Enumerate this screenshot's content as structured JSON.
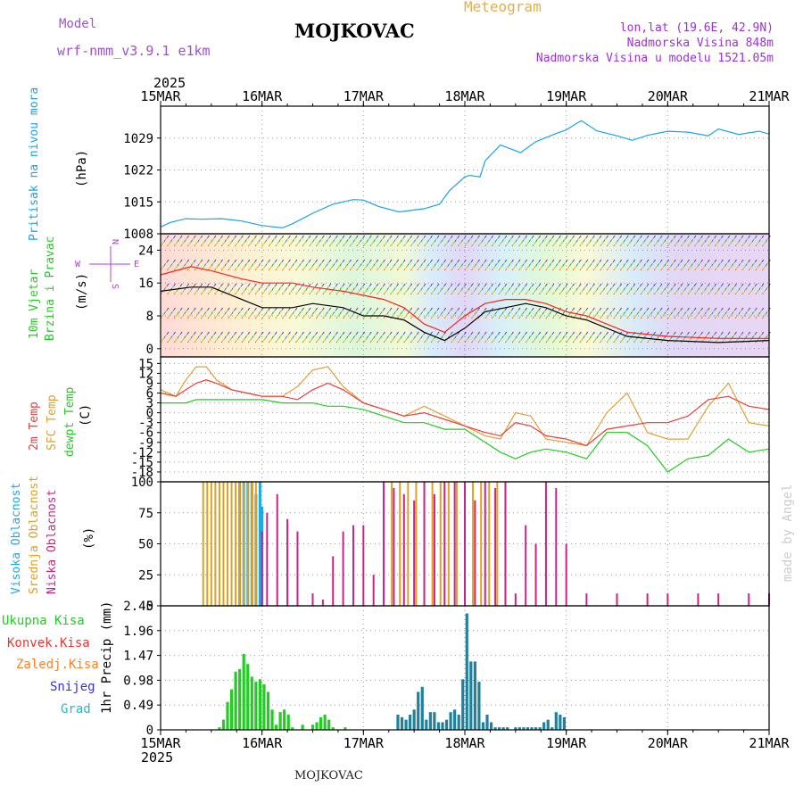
{
  "header": {
    "model_label": "Model",
    "model_name": "wrf-nmm_v3.9.1 e1km",
    "station": "MOJKOVAC",
    "meteogram": "Meteogram",
    "lonlat": "lon,lat (19.6E, 42.9N)",
    "elevation": "Nadmorska Visina 848m",
    "model_elevation": "Nadmorska Visina u modelu 1521.05m",
    "year_top": "2025",
    "year_bottom": "2025",
    "footer_station": "MOJKOVAC",
    "credit": "made by Angel"
  },
  "colors": {
    "pressure": "#1aa3e8",
    "wind_speed": "#000000",
    "gust": "#ff2020",
    "t2m": "#ee3b3b",
    "sfc": "#e0a030",
    "dew": "#22cc22",
    "cloud_high": "#22a8e0",
    "cloud_mid": "#e0a020",
    "cloud_low": "#cc2288",
    "rain_total": "#22cc22",
    "rain_conv": "#ee3333",
    "rain_frz": "#ff7f27",
    "snow": "#3333dd",
    "hail": "#22bbbb",
    "grid": "#999999",
    "wind_legend": "#b040d0"
  },
  "axes": {
    "time_labels": [
      "15MAR",
      "16MAR",
      "17MAR",
      "18MAR",
      "19MAR",
      "20MAR",
      "21MAR"
    ]
  },
  "panels": {
    "pressure": {
      "label_a": "Pritisak na nivou mora",
      "unit": "(hPa)"
    },
    "wind": {
      "label_a": "10m Vjetar",
      "label_b": "Brzina i Pravac",
      "unit": "(m/s)",
      "legend_n": "N",
      "legend_s": "S",
      "legend_w": "W",
      "legend_e": "E"
    },
    "temp": {
      "label_a": "2m Temp",
      "label_b": "SFC Temp",
      "label_c": "dewpt Temp",
      "unit": "(C)"
    },
    "cloud": {
      "label_a": "Visoka Oblacnost",
      "label_b": "Srednja Oblacnost",
      "label_c": "Niska Oblacnost",
      "unit": "(%)"
    },
    "precip": {
      "labels": [
        "Ukupna Kisa",
        "Konvek.Kisa",
        "Zaledj.Kisa",
        "Snijeg",
        "Grad"
      ],
      "unit": "1hr Precip (mm)"
    }
  },
  "chart_data": [
    {
      "type": "line",
      "name": "pressure",
      "x_unit": "days since 15MAR 00",
      "ylim": [
        1008,
        1036
      ],
      "yticks": [
        1008,
        1015,
        1022,
        1029
      ],
      "series": [
        {
          "x": [
            0,
            0.1,
            0.25,
            0.4,
            0.6,
            0.8,
            1.0,
            1.2,
            1.3,
            1.5,
            1.7,
            1.9,
            2.0,
            2.15,
            2.35,
            2.6,
            2.75,
            2.85,
            3.0,
            3.05,
            3.15,
            3.2,
            3.35,
            3.55,
            3.7,
            3.9,
            4.0,
            4.1,
            4.15,
            4.3,
            4.5,
            4.65,
            4.8,
            5.0,
            5.2,
            5.4,
            5.5,
            5.7,
            5.9,
            6.0
          ],
          "y": [
            1009.5,
            1010.5,
            1011.3,
            1011.2,
            1011.3,
            1010.8,
            1009.8,
            1009.3,
            1010.2,
            1012.5,
            1014.5,
            1015.5,
            1015.4,
            1014,
            1012.8,
            1013.5,
            1014.5,
            1017.5,
            1020.5,
            1020.8,
            1020.5,
            1024,
            1027.5,
            1025.8,
            1028.2,
            1030,
            1030.8,
            1032.2,
            1032.8,
            1030.6,
            1029.5,
            1028.5,
            1029.6,
            1030.5,
            1030.3,
            1029.5,
            1031,
            1029.8,
            1030.5,
            1029.9
          ]
        }
      ]
    },
    {
      "type": "line",
      "name": "wind",
      "x_unit": "days since 15MAR 00",
      "ylim": [
        -2,
        28
      ],
      "yticks": [
        0,
        8,
        16,
        24
      ],
      "series": [
        {
          "name": "speed",
          "x": [
            0,
            0.3,
            0.5,
            0.8,
            1.0,
            1.3,
            1.5,
            1.8,
            2.0,
            2.2,
            2.4,
            2.6,
            2.8,
            3.0,
            3.2,
            3.4,
            3.6,
            3.8,
            4.0,
            4.2,
            4.4,
            4.6,
            5.0,
            5.5,
            6.0
          ],
          "y": [
            14,
            15,
            15,
            12,
            10,
            10,
            11,
            10,
            8,
            8,
            7,
            4,
            2,
            5,
            9,
            10,
            11,
            10,
            8,
            7,
            5,
            3,
            2,
            1.5,
            2
          ]
        },
        {
          "name": "gust",
          "x": [
            0,
            0.3,
            0.5,
            0.8,
            1.0,
            1.3,
            1.5,
            1.8,
            2.0,
            2.2,
            2.4,
            2.6,
            2.8,
            3.0,
            3.2,
            3.4,
            3.6,
            3.8,
            4.0,
            4.2,
            4.4,
            4.6,
            5.0,
            5.5,
            6.0
          ],
          "y": [
            18,
            20,
            19,
            17,
            16,
            16,
            15,
            14,
            13,
            12,
            10,
            6,
            4,
            8,
            11,
            12,
            12,
            11,
            9,
            8,
            6,
            4,
            3,
            2.5,
            2.5
          ]
        }
      ]
    },
    {
      "type": "line",
      "name": "temperature",
      "x_unit": "days since 15MAR 00",
      "ylim": [
        -21,
        17
      ],
      "yticks": [
        -18,
        -15,
        -12,
        -9,
        -6,
        -3,
        0,
        3,
        6,
        9,
        12,
        15
      ],
      "series": [
        {
          "name": "t2m",
          "x": [
            0,
            0.15,
            0.25,
            0.35,
            0.45,
            0.55,
            0.7,
            0.85,
            1.0,
            1.2,
            1.35,
            1.5,
            1.65,
            1.8,
            2.0,
            2.2,
            2.4,
            2.6,
            2.8,
            3.0,
            3.2,
            3.35,
            3.5,
            3.65,
            3.8,
            4.0,
            4.2,
            4.4,
            4.6,
            4.8,
            5.0,
            5.2,
            5.4,
            5.6,
            5.8,
            6.0
          ],
          "y": [
            6,
            5,
            7,
            9,
            10,
            9,
            7,
            6,
            5,
            5,
            4,
            7,
            9,
            7,
            3,
            1,
            -1,
            0,
            -2,
            -4,
            -6,
            -7,
            -3,
            -4,
            -7,
            -8,
            -10,
            -5,
            -4,
            -3,
            -3,
            -1,
            4,
            5,
            2,
            1
          ]
        },
        {
          "name": "sfc",
          "x": [
            0,
            0.15,
            0.25,
            0.35,
            0.45,
            0.55,
            0.7,
            0.85,
            1.0,
            1.2,
            1.35,
            1.5,
            1.65,
            1.8,
            2.0,
            2.2,
            2.4,
            2.6,
            2.8,
            3.0,
            3.2,
            3.35,
            3.5,
            3.65,
            3.8,
            4.0,
            4.2,
            4.4,
            4.6,
            4.8,
            5.0,
            5.2,
            5.4,
            5.6,
            5.8,
            6.0
          ],
          "y": [
            7,
            5,
            10,
            14,
            14,
            10,
            7,
            6,
            5,
            5,
            8,
            13,
            14,
            8,
            3,
            1,
            -1,
            2,
            -1,
            -4,
            -7,
            -8,
            0,
            -1,
            -8,
            -9,
            -10,
            0,
            6,
            -6,
            -8,
            -8,
            2,
            9,
            -3,
            -4
          ]
        },
        {
          "name": "dewpt",
          "x": [
            0,
            0.15,
            0.25,
            0.35,
            0.45,
            0.55,
            0.7,
            0.85,
            1.0,
            1.2,
            1.35,
            1.5,
            1.65,
            1.8,
            2.0,
            2.2,
            2.4,
            2.6,
            2.8,
            3.0,
            3.2,
            3.35,
            3.5,
            3.65,
            3.8,
            4.0,
            4.2,
            4.4,
            4.6,
            4.8,
            5.0,
            5.2,
            5.4,
            5.6,
            5.8,
            6.0
          ],
          "y": [
            3,
            3,
            3,
            4,
            4,
            4,
            4,
            4,
            4,
            3,
            3,
            3,
            2,
            2,
            1,
            -1,
            -3,
            -3,
            -5,
            -5,
            -9,
            -12,
            -14,
            -12,
            -11,
            -12,
            -14,
            -6,
            -6,
            -10,
            -18,
            -14,
            -13,
            -8,
            -12,
            -11
          ]
        }
      ]
    },
    {
      "type": "bar",
      "name": "cloud",
      "x_unit": "days since 15MAR 00",
      "ylim": [
        0,
        100
      ],
      "yticks": [
        0,
        25,
        50,
        75,
        100
      ],
      "series": [
        {
          "name": "high",
          "x": [
            0.78,
            0.82,
            0.86,
            0.9,
            0.94,
            0.98,
            1.0
          ],
          "values": [
            100,
            100,
            100,
            100,
            90,
            100,
            80
          ]
        },
        {
          "name": "mid",
          "x": [
            0.42,
            0.46,
            0.5,
            0.54,
            0.58,
            0.62,
            0.66,
            0.7,
            0.74,
            0.78,
            0.82,
            0.86,
            0.9,
            0.94,
            2.2,
            2.28,
            2.36,
            2.44,
            2.52,
            2.6,
            2.68,
            2.76,
            2.84,
            2.92,
            3.0,
            3.08,
            3.16,
            3.24,
            3.32,
            3.4
          ],
          "values": [
            100,
            100,
            100,
            100,
            100,
            100,
            100,
            100,
            100,
            100,
            100,
            100,
            100,
            100,
            100,
            100,
            100,
            100,
            100,
            100,
            100,
            100,
            100,
            100,
            100,
            100,
            100,
            100,
            100,
            100
          ]
        },
        {
          "name": "low",
          "x": [
            1.0,
            1.05,
            1.15,
            1.25,
            1.35,
            1.5,
            1.6,
            1.7,
            1.8,
            1.9,
            2.0,
            2.1,
            2.2,
            2.3,
            2.4,
            2.5,
            2.6,
            2.7,
            2.8,
            2.9,
            3.0,
            3.1,
            3.2,
            3.3,
            3.4,
            3.5,
            3.6,
            3.7,
            3.8,
            3.9,
            4.0,
            4.2,
            4.5,
            4.8,
            5.0,
            5.3,
            5.5,
            5.8,
            6.0
          ],
          "values": [
            60,
            75,
            90,
            70,
            60,
            10,
            5,
            40,
            60,
            65,
            65,
            25,
            100,
            95,
            90,
            85,
            100,
            90,
            100,
            100,
            100,
            85,
            100,
            95,
            100,
            10,
            65,
            50,
            100,
            95,
            50,
            10,
            10,
            10,
            10,
            10,
            10,
            10,
            10
          ]
        }
      ]
    },
    {
      "type": "bar",
      "name": "precipitation",
      "x_unit": "days since 15MAR 00",
      "ylim": [
        0,
        2.45
      ],
      "yticks": [
        0,
        0.49,
        0.98,
        1.47,
        1.96,
        2.45
      ],
      "series": [
        {
          "name": "total",
          "x": [
            0.58,
            0.62,
            0.66,
            0.7,
            0.74,
            0.78,
            0.82,
            0.86,
            0.9,
            0.94,
            0.98,
            1.02,
            1.06,
            1.1,
            1.14,
            1.18,
            1.22,
            1.26,
            1.3,
            1.4,
            1.5,
            1.54,
            1.58,
            1.62,
            1.66,
            1.7,
            1.82,
            2.34,
            2.38,
            2.42,
            2.46,
            2.5,
            2.54,
            2.58,
            2.62,
            2.66,
            2.7,
            2.74,
            2.78,
            2.82,
            2.86,
            2.9,
            2.94,
            2.98,
            3.02,
            3.06,
            3.1,
            3.14,
            3.18,
            3.22,
            3.26,
            3.3,
            3.34,
            3.38,
            3.42,
            3.5,
            3.54,
            3.58,
            3.62,
            3.66,
            3.7,
            3.74,
            3.78,
            3.82,
            3.86,
            3.9,
            3.94,
            3.98
          ],
          "values": [
            0.05,
            0.2,
            0.55,
            0.8,
            1.15,
            1.2,
            1.5,
            1.3,
            1.05,
            0.95,
            1.0,
            0.9,
            0.75,
            0.4,
            0.1,
            0.35,
            0.4,
            0.3,
            0.05,
            0.1,
            0.1,
            0.15,
            0.25,
            0.3,
            0.2,
            0.05,
            0.05,
            0.3,
            0.25,
            0.2,
            0.3,
            0.4,
            0.75,
            0.85,
            0.2,
            0.35,
            0.35,
            0.15,
            0.15,
            0.2,
            0.35,
            0.4,
            0.3,
            1.0,
            2.3,
            1.35,
            1.35,
            0.95,
            0.15,
            0.3,
            0.15,
            0.05,
            0.05,
            0.05,
            0.05,
            0.05,
            0.05,
            0.05,
            0.05,
            0.05,
            0.05,
            0.05,
            0.15,
            0.2,
            0.05,
            0.35,
            0.3,
            0.25
          ]
        }
      ]
    }
  ]
}
